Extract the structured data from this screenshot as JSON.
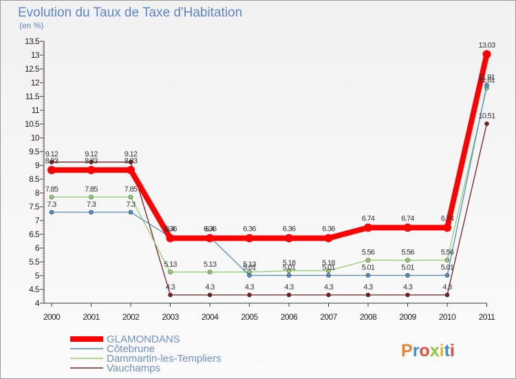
{
  "chart_data": {
    "type": "line",
    "title": "Evolution du Taux de Taxe d'Habitation",
    "subtitle": "(en %)",
    "x": [
      "2000",
      "2001",
      "2002",
      "2003",
      "2004",
      "2005",
      "2006",
      "2007",
      "2008",
      "2009",
      "2010",
      "2011"
    ],
    "ylim": [
      4,
      13.5
    ],
    "yticks": [
      "4",
      "4.5",
      "5",
      "5.5",
      "6",
      "6.5",
      "7",
      "7.5",
      "8",
      "8.5",
      "9",
      "9.5",
      "10",
      "10.5",
      "11",
      "11.5",
      "12",
      "12.5",
      "13",
      "13.5"
    ],
    "grid": false,
    "legend": "bottom-left",
    "series": [
      {
        "name": "GLAMONDANS",
        "color": "#ff0000",
        "values": [
          8.83,
          8.83,
          8.83,
          6.36,
          6.36,
          6.36,
          6.36,
          6.36,
          6.74,
          6.74,
          6.74,
          13.03
        ],
        "labels": [
          "8.83",
          "8.83",
          "8.83",
          "6.36",
          "6.36",
          "6.36",
          "6.36",
          "6.36",
          "6.74",
          "6.74",
          "6.74",
          "13.03"
        ]
      },
      {
        "name": "Côtebrune",
        "color": "#4f8cc9",
        "values": [
          7.3,
          7.3,
          7.3,
          6.4,
          6.4,
          5.01,
          5.01,
          5.01,
          5.01,
          5.01,
          5.01,
          11.91
        ],
        "labels": [
          "7.3",
          "7.3",
          "7.3",
          "6.4",
          "6.4",
          "5.01",
          "5.01",
          "5.01",
          "5.01",
          "5.01",
          "5.01",
          "11.91"
        ]
      },
      {
        "name": "Dammartin-les-Templiers",
        "color": "#8fd06a",
        "values": [
          7.85,
          7.85,
          7.85,
          5.13,
          5.13,
          5.13,
          5.18,
          5.18,
          5.56,
          5.56,
          5.56,
          11.81
        ],
        "labels": [
          "7.85",
          "7.85",
          "7.85",
          "5.13",
          "5.13",
          "5.13",
          "5.18",
          "5.18",
          "5.56",
          "5.56",
          "5.56",
          "11.81"
        ]
      },
      {
        "name": "Vauchamps",
        "color": "#7a1c1c",
        "values": [
          9.12,
          9.12,
          9.12,
          4.3,
          4.3,
          4.3,
          4.3,
          4.3,
          4.3,
          4.3,
          4.3,
          10.51
        ],
        "labels": [
          "9.12",
          "9.12",
          "9.12",
          "4.3",
          "4.3",
          "4.3",
          "4.3",
          "4.3",
          "4.3",
          "4.3",
          "4.3",
          "10.51"
        ]
      }
    ]
  },
  "logo": {
    "text": "Proxiti",
    "colors": [
      "#e8832a",
      "#3a8fd8",
      "#e84a3a",
      "#8cc63f",
      "#e8b52a",
      "#3a8fd8",
      "#e84a3a"
    ]
  }
}
